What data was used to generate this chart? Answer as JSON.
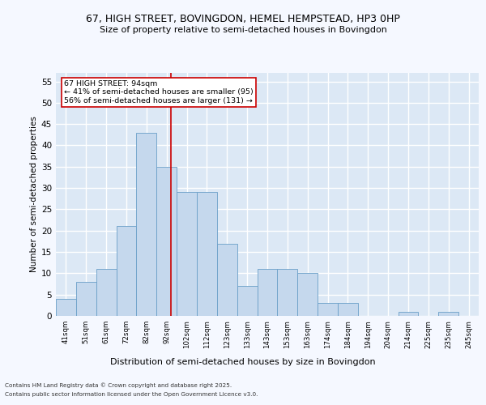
{
  "title_line1": "67, HIGH STREET, BOVINGDON, HEMEL HEMPSTEAD, HP3 0HP",
  "title_line2": "Size of property relative to semi-detached houses in Bovingdon",
  "xlabel": "Distribution of semi-detached houses by size in Bovingdon",
  "ylabel": "Number of semi-detached properties",
  "categories": [
    "41sqm",
    "51sqm",
    "61sqm",
    "72sqm",
    "82sqm",
    "92sqm",
    "102sqm",
    "112sqm",
    "123sqm",
    "133sqm",
    "143sqm",
    "153sqm",
    "163sqm",
    "174sqm",
    "184sqm",
    "194sqm",
    "204sqm",
    "214sqm",
    "225sqm",
    "235sqm",
    "245sqm"
  ],
  "values": [
    4,
    8,
    11,
    21,
    43,
    35,
    29,
    29,
    17,
    7,
    11,
    11,
    10,
    3,
    3,
    0,
    0,
    1,
    0,
    1,
    0
  ],
  "bar_color": "#c5d8ed",
  "bar_edge_color": "#6a9fc8",
  "annotation_text_line1": "67 HIGH STREET: 94sqm",
  "annotation_text_line2": "← 41% of semi-detached houses are smaller (95)",
  "annotation_text_line3": "56% of semi-detached houses are larger (131) →",
  "vline_color": "#cc0000",
  "ylim": [
    0,
    57
  ],
  "yticks": [
    0,
    5,
    10,
    15,
    20,
    25,
    30,
    35,
    40,
    45,
    50,
    55
  ],
  "bg_color": "#dce8f5",
  "grid_color": "#ffffff",
  "fig_bg_color": "#f5f8ff",
  "footer_line1": "Contains HM Land Registry data © Crown copyright and database right 2025.",
  "footer_line2": "Contains public sector information licensed under the Open Government Licence v3.0.",
  "annotation_box_edge": "#cc0000",
  "annotation_box_face": "#ffffff"
}
